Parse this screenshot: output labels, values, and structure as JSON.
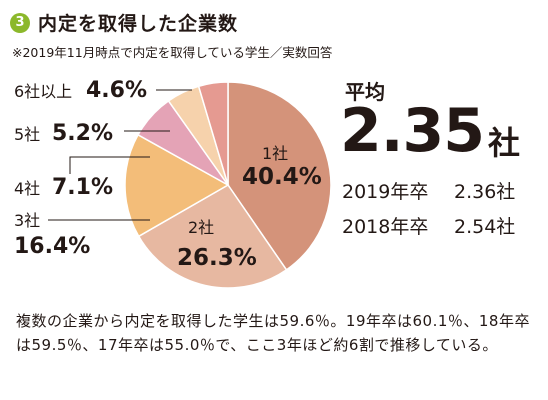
{
  "header": {
    "number": "3",
    "title": "内定を取得した企業数",
    "note": "※2019年11月時点で内定を取得している学生／実数回答"
  },
  "average": {
    "label": "平均",
    "value": "2.35",
    "unit": "社",
    "rows": [
      {
        "year": "2019年卒",
        "value": "2.36社"
      },
      {
        "year": "2018年卒",
        "value": "2.54社"
      }
    ]
  },
  "footer": "複数の企業から内定を取得した学生は59.6％。19年卒は60.1％、18年卒は59.5％、17年卒は55.0％で、ここ3年ほど約6割で推移している。",
  "chart_data": {
    "type": "pie",
    "title": "",
    "start": "top",
    "direction": "clockwise",
    "slices": [
      {
        "label": "1社",
        "value": 40.4,
        "value_label": "40.4%",
        "color": "#d4937a"
      },
      {
        "label": "2社",
        "value": 26.3,
        "value_label": "26.3%",
        "color": "#e7b8a1"
      },
      {
        "label": "3社",
        "value": 16.4,
        "value_label": "16.4%",
        "color": "#f3bd79"
      },
      {
        "label": "4社",
        "value": 7.1,
        "value_label": "7.1%",
        "color": "#e4a3b6"
      },
      {
        "label": "5社",
        "value": 5.2,
        "value_label": "5.2%",
        "color": "#f6d2ac"
      },
      {
        "label": "6社以上",
        "value": 4.6,
        "value_label": "4.6%",
        "color": "#e59a91"
      }
    ]
  }
}
